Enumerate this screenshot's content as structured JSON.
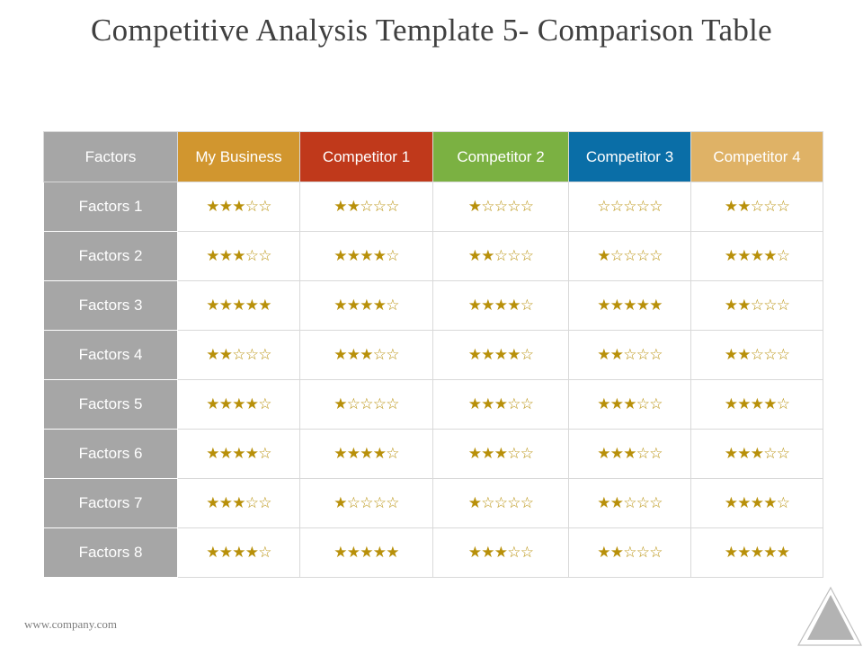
{
  "title": "Competitive Analysis Template 5- Comparison Table",
  "footer": "www.company.com",
  "colors": {
    "factors_header": "#a6a6a6",
    "my_business": "#d1962f",
    "competitor1": "#c0391b",
    "competitor2": "#7bb142",
    "competitor3": "#0a6ea7",
    "competitor4": "#dfb266",
    "star": "#b8900a"
  },
  "table": {
    "headers": [
      "Factors",
      "My Business",
      "Competitor 1",
      "Competitor 2",
      "Competitor 3",
      "Competitor 4"
    ],
    "max_stars": 5,
    "rows": [
      {
        "factor": "Factors 1",
        "ratings": [
          3,
          2,
          1,
          0,
          2
        ]
      },
      {
        "factor": "Factors 2",
        "ratings": [
          3,
          4,
          2,
          1,
          4
        ]
      },
      {
        "factor": "Factors 3",
        "ratings": [
          5,
          4,
          4,
          5,
          2
        ]
      },
      {
        "factor": "Factors 4",
        "ratings": [
          2,
          3,
          4,
          2,
          2
        ]
      },
      {
        "factor": "Factors 5",
        "ratings": [
          4,
          1,
          3,
          3,
          4
        ]
      },
      {
        "factor": "Factors 6",
        "ratings": [
          4,
          4,
          3,
          3,
          3
        ]
      },
      {
        "factor": "Factors 7",
        "ratings": [
          3,
          1,
          1,
          2,
          4
        ]
      },
      {
        "factor": "Factors 8",
        "ratings": [
          4,
          5,
          3,
          2,
          5
        ]
      }
    ]
  }
}
